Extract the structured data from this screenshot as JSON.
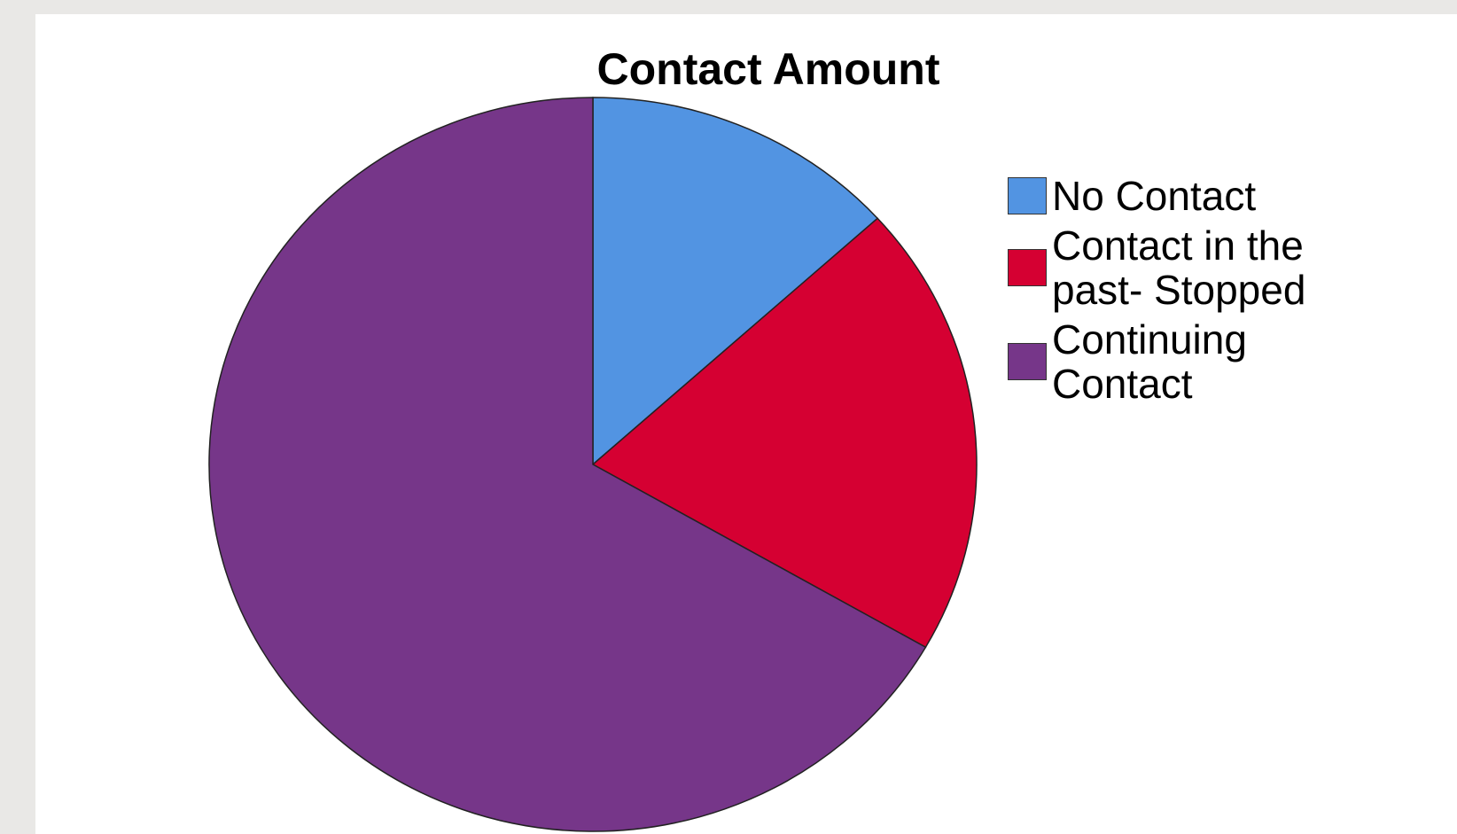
{
  "chart_data": {
    "type": "pie",
    "title": "Contact Amount",
    "categories": [
      "No Contact",
      "Contact in the past- Stopped",
      "Continuing Contact"
    ],
    "values": [
      13.3,
      20.0,
      66.7
    ],
    "colors": [
      "#5294e2",
      "#d50032",
      "#763689"
    ],
    "legend": "right"
  }
}
